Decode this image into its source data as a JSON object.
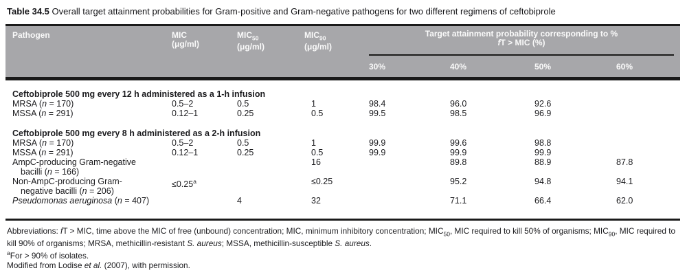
{
  "colors": {
    "header_bg": "#a7a7aa",
    "rule_black": "#1a1a1a",
    "header_text": "#fafafa",
    "body_text": "#1b1b1e"
  },
  "title": {
    "label": "Table 34.5",
    "text": " Overall target attainment probabilities for Gram-positive and Gram-negative pathogens for two different regimens of ceftobiprole"
  },
  "header": {
    "pathogen": "Pathogen",
    "mic_base": "MIC",
    "mic_unit": "(μg/ml)",
    "mic50_base": "MIC",
    "mic50_sub": "50",
    "mic50_unit": "(μg/ml)",
    "mic90_base": "MIC",
    "mic90_sub": "90",
    "mic90_unit": "(μg/ml)",
    "span_line1": "Target attainment probability corresponding to %",
    "span_f": "f",
    "span_rest": "T > MIC (%)",
    "pcols": [
      "30%",
      "40%",
      "50%",
      "60%"
    ]
  },
  "s1": {
    "heading": "Ceftobiprole 500 mg every 12 h administered as a 1-h infusion",
    "rows": [
      {
        "pre": "MRSA (",
        "n": "n",
        "post": " = 170)",
        "mic": "0.5–2",
        "mic50": "0.5",
        "mic90": "1",
        "p30": "98.4",
        "p40": "96.0",
        "p50": "92.6",
        "p60": ""
      },
      {
        "pre": "MSSA (",
        "n": "n",
        "post": " = 291)",
        "mic": "0.12–1",
        "mic50": "0.25",
        "mic90": "0.5",
        "p30": "99.5",
        "p40": "98.5",
        "p50": "96.9",
        "p60": ""
      }
    ]
  },
  "s2": {
    "heading": "Ceftobiprole 500 mg every 8 h administered as a 2-h infusion",
    "rows": [
      {
        "pre": "MRSA (",
        "n": "n",
        "post": " = 170)",
        "mic": "0.5–2",
        "mic50": "0.5",
        "mic90": "1",
        "p30": "99.9",
        "p40": "99.6",
        "p50": "98.8",
        "p60": ""
      },
      {
        "pre": "MSSA (",
        "n": "n",
        "post": " = 291)",
        "mic": "0.12–1",
        "mic50": "0.25",
        "mic90": "0.5",
        "p30": "99.9",
        "p40": "99.9",
        "p50": "99.9",
        "p60": ""
      }
    ],
    "ampc": {
      "line1": "AmpC-producing Gram-negative",
      "l2pre": "bacilli (",
      "n": "n",
      "post": " = 166)",
      "mic": "",
      "mic50": "",
      "mic90": "16",
      "p30": "",
      "p40": "89.8",
      "p50": "88.9",
      "p60": "87.8"
    },
    "nonampc": {
      "line1": "Non-AmpC-producing Gram-",
      "l2pre": "negative bacilli (",
      "n": "n",
      "post": " = 206)",
      "mic": "≤0.25",
      "mic_sup": "a",
      "mic50": "",
      "mic90": "≤0.25",
      "p30": "",
      "p40": "95.2",
      "p50": "94.8",
      "p60": "94.1"
    },
    "pa": {
      "name": "Pseudomonas aeruginosa",
      "pre": " (",
      "n": "n",
      "post": " = 407)",
      "mic": "",
      "mic50": "4",
      "mic90": "32",
      "p30": "",
      "p40": "71.1",
      "p50": "66.4",
      "p60": "62.0"
    }
  },
  "footnotes": {
    "abbr": {
      "a0": "Abbreviations: ",
      "f": "f",
      "a1": "T > MIC, time above the MIC of free (unbound) concentration; MIC, minimum inhibitory concentration; MIC",
      "sub50": "50",
      "a2": ", MIC required to kill 50% of organisms; MIC",
      "sub90": "90",
      "a3": ", MIC required to kill 90% of organisms; MRSA, methicillin-resistant ",
      "it1": "S. aureus",
      "a4": "; MSSA, methicillin-susceptible ",
      "it2": "S. aureus",
      "a5": "."
    },
    "note_a_sup": "a",
    "note_a": "For > 90% of isolates.",
    "src_pre": "Modified from Lodise ",
    "src_etal": "et al.",
    "src_post": " (2007), with permission."
  }
}
